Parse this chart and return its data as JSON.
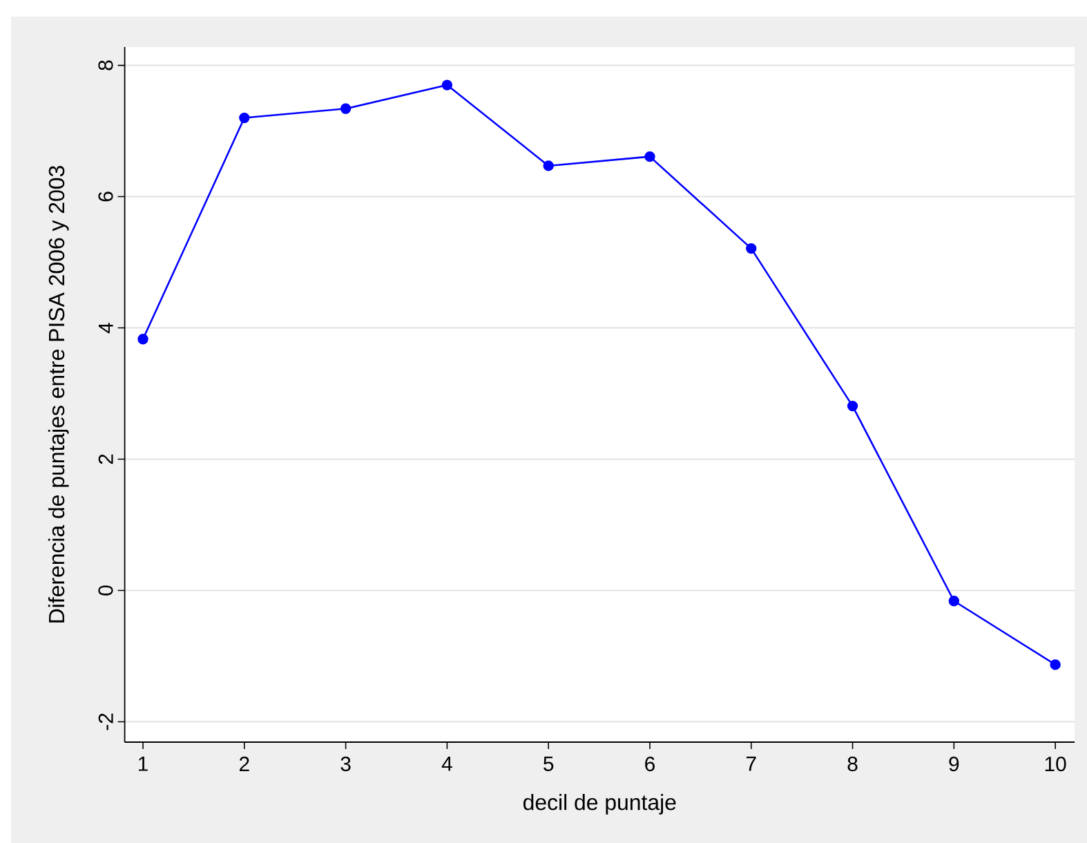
{
  "chart_data": {
    "type": "line",
    "xlabel": "decil de puntaje",
    "ylabel": "Diferencia de puntajes entre PISA 2006 y 2003",
    "x": [
      1,
      2,
      3,
      4,
      5,
      6,
      7,
      8,
      9,
      10
    ],
    "series": [
      {
        "color": "#0000ff",
        "values": [
          3.83,
          7.2,
          7.34,
          7.7,
          6.47,
          6.61,
          5.21,
          2.81,
          -0.16,
          -1.13
        ]
      }
    ],
    "xlim": [
      0.82,
      10.19
    ],
    "ylim": [
      -2.31,
      8.28
    ],
    "xticks": [
      1,
      2,
      3,
      4,
      5,
      6,
      7,
      8,
      9,
      10
    ],
    "yticks": [
      -2,
      0,
      2,
      4,
      6,
      8
    ],
    "grid": "y",
    "marker": "circle",
    "line_style": "solid"
  }
}
